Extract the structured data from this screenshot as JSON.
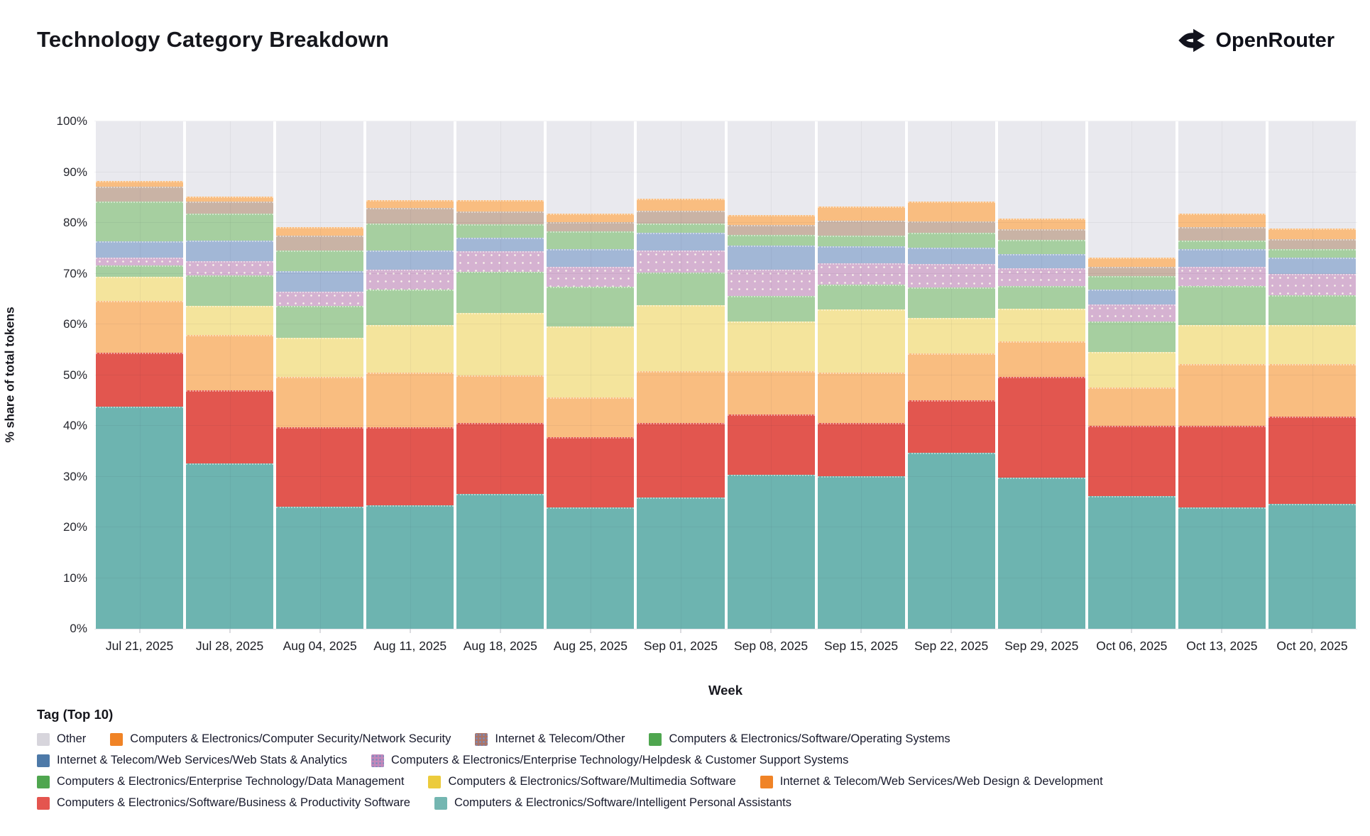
{
  "header": {
    "title": "Technology Category Breakdown",
    "brand": "OpenRouter"
  },
  "chart_data": {
    "type": "bar",
    "stacked": true,
    "title": "Technology Category Breakdown",
    "xlabel": "Week",
    "ylabel": "% share of total tokens",
    "ylim": [
      0,
      100
    ],
    "grid": true,
    "ytick_labels": [
      "0%",
      "10%",
      "20%",
      "30%",
      "40%",
      "50%",
      "60%",
      "70%",
      "80%",
      "90%",
      "100%"
    ],
    "categories": [
      "Jul 21, 2025",
      "Jul 28, 2025",
      "Aug 04, 2025",
      "Aug 11, 2025",
      "Aug 18, 2025",
      "Aug 25, 2025",
      "Sep 01, 2025",
      "Sep 08, 2025",
      "Sep 15, 2025",
      "Sep 22, 2025",
      "Sep 29, 2025",
      "Oct 06, 2025",
      "Oct 13, 2025",
      "Oct 20, 2025"
    ],
    "series": [
      {
        "key": "intelligent-personal-assistants",
        "name": "Computers & Electronics/Software/Intelligent Personal Assistants",
        "color": "#6db4b0",
        "legend_color": "#74b6b1",
        "values": [
          43.8,
          32.6,
          24.0,
          24.3,
          26.6,
          23.9,
          25.9,
          30.3,
          30.1,
          34.7,
          29.8,
          26.2,
          23.9,
          24.6
        ]
      },
      {
        "key": "business-productivity-software",
        "name": "Computers & Electronics/Software/Business & Productivity Software",
        "color": "#e2564f",
        "legend_color": "#e4554f",
        "values": [
          10.6,
          14.4,
          15.7,
          15.4,
          14.0,
          13.8,
          14.6,
          11.9,
          10.4,
          10.4,
          19.8,
          13.8,
          16.1,
          17.2
        ]
      },
      {
        "key": "web-design-development",
        "name": "Internet & Telecom/Web Services/Web Design & Development",
        "color": "#f9bd80",
        "legend_color": "#f08326",
        "values": [
          10.2,
          10.9,
          10.0,
          10.8,
          9.3,
          7.9,
          10.3,
          8.6,
          10.0,
          9.1,
          7.0,
          7.6,
          12.2,
          10.4
        ]
      },
      {
        "key": "multimedia-software",
        "name": "Computers & Electronics/Software/Multimedia Software",
        "color": "#f4e49c",
        "legend_color": "#eccb3c",
        "values": [
          4.8,
          5.7,
          7.6,
          9.4,
          12.4,
          14.0,
          13.0,
          9.7,
          12.5,
          7.0,
          6.5,
          7.0,
          7.6,
          7.7
        ]
      },
      {
        "key": "data-management",
        "name": "Computers & Electronics/Enterprise Technology/Data Management",
        "color": "#a6cfa0",
        "legend_color": "#4fa64f",
        "values": [
          2.2,
          6.1,
          6.3,
          7.0,
          8.0,
          7.8,
          6.4,
          5.1,
          4.8,
          6.1,
          4.5,
          5.9,
          7.8,
          5.9
        ]
      },
      {
        "key": "helpdesk-customer-support",
        "name": "Computers & Electronics/Enterprise Technology/Helpdesk & Customer Support Systems",
        "color": "#d5b2d1",
        "pattern": "dots",
        "legend_color": "#c388bb",
        "values": [
          1.6,
          2.8,
          2.9,
          3.9,
          4.1,
          4.0,
          4.3,
          5.2,
          4.2,
          4.6,
          3.4,
          3.4,
          3.8,
          4.2
        ]
      },
      {
        "key": "web-stats-analytics",
        "name": "Internet & Telecom/Web Services/Web Stats & Analytics",
        "color": "#a2b7d6",
        "legend_color": "#4d79a8",
        "values": [
          3.2,
          4.0,
          4.0,
          3.7,
          2.7,
          3.4,
          3.5,
          4.8,
          3.4,
          3.2,
          2.9,
          3.0,
          3.5,
          3.2
        ]
      },
      {
        "key": "operating-systems",
        "name": "Computers & Electronics/Software/Operating Systems",
        "color": "#a6cfa0",
        "legend_color": "#4fa64f",
        "values": [
          7.8,
          5.3,
          4.0,
          5.4,
          2.6,
          3.6,
          1.9,
          2.0,
          2.1,
          2.9,
          2.7,
          2.6,
          1.6,
          1.6
        ]
      },
      {
        "key": "internet-telecom-other",
        "name": "Internet & Telecom/Other",
        "color": "#c9b3a5",
        "legend_color": "#aa7468",
        "legend_pattern": "dots",
        "values": [
          3.0,
          2.4,
          3.0,
          3.0,
          2.6,
          1.8,
          2.5,
          2.0,
          2.9,
          2.3,
          2.1,
          1.9,
          2.7,
          2.0
        ]
      },
      {
        "key": "network-security",
        "name": "Computers & Electronics/Computer Security/Network Security",
        "color": "#f9bd80",
        "legend_color": "#f08326",
        "values": [
          1.0,
          1.0,
          1.7,
          1.6,
          2.2,
          1.7,
          2.3,
          1.9,
          2.8,
          3.9,
          2.1,
          1.7,
          2.7,
          2.1
        ]
      },
      {
        "key": "other",
        "name": "Other",
        "color": "#e9e9ee",
        "legend_color": "#d7d5dc",
        "values": [
          11.8,
          14.8,
          20.8,
          15.5,
          15.5,
          18.1,
          15.3,
          18.5,
          16.8,
          15.8,
          19.2,
          26.9,
          18.1,
          21.1
        ]
      }
    ],
    "legend": {
      "title": "Tag (Top 10)",
      "position": "bottom",
      "rows": [
        [
          10,
          9,
          8,
          7
        ],
        [
          6,
          5
        ],
        [
          4,
          3,
          2
        ],
        [
          1,
          0
        ]
      ]
    }
  }
}
